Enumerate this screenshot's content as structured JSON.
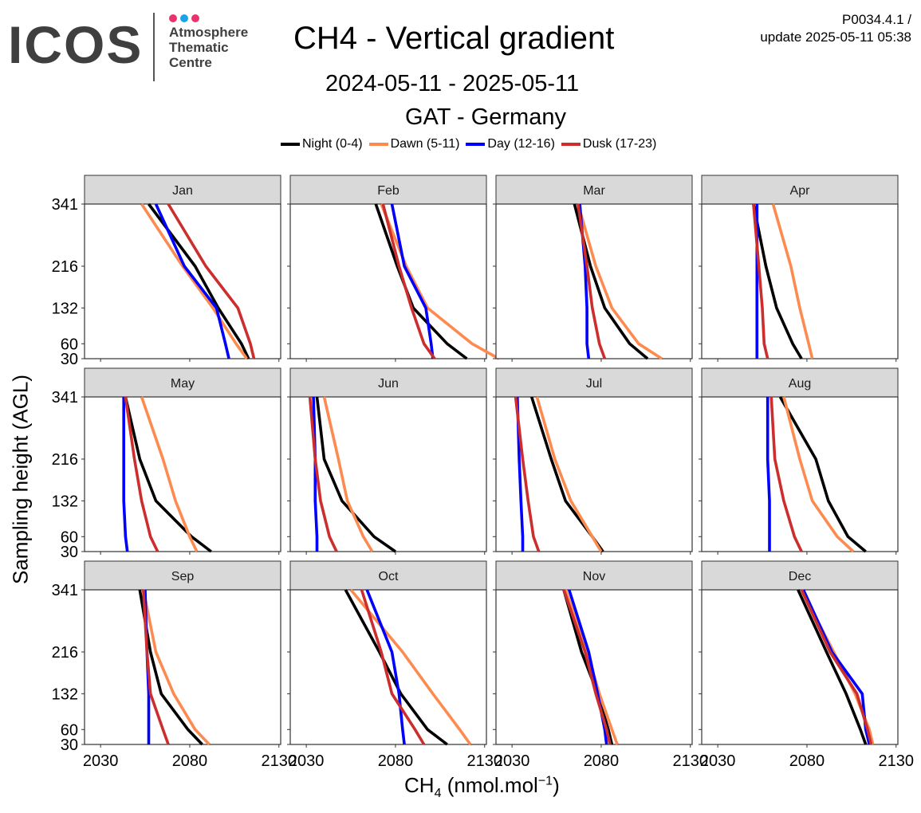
{
  "header": {
    "logo_text": "ICOS",
    "logo_sub": [
      "Atmosphere",
      "Thematic",
      "Centre"
    ],
    "logo_dot_colors": [
      "#e8336d",
      "#1aa3e8",
      "#e8336d"
    ],
    "title": "CH4 - Vertical gradient",
    "subtitle_dates": "2024-05-11 - 2025-05-11",
    "subtitle_station": "GAT - Germany",
    "product_code": "P0034.4.1 /",
    "update_text": "update  2025-05-11 05:38"
  },
  "axis": {
    "ylabel": "Sampling height (AGL)",
    "xlabel_main": "CH",
    "xlabel_sub": "4",
    "xlabel_rest": " (nmol.mol",
    "xlabel_sup": "−1",
    "xlabel_end": ")"
  },
  "chart_data": {
    "type": "line",
    "facets": [
      "Jan",
      "Feb",
      "Mar",
      "Apr",
      "May",
      "Jun",
      "Jul",
      "Aug",
      "Sep",
      "Oct",
      "Nov",
      "Dec"
    ],
    "layout": "3 rows x 4 columns",
    "y_heights": [
      30,
      60,
      132,
      216,
      341
    ],
    "ylim": [
      30,
      341
    ],
    "y_ticks": [
      "30",
      "60",
      "132",
      "216",
      "341"
    ],
    "xlim": [
      2021,
      2131
    ],
    "x_ticks": [
      "2030",
      "2080",
      "2130"
    ],
    "legend_position": "top",
    "series": [
      {
        "name": "Night (0-4)",
        "color": "#000000"
      },
      {
        "name": "Dawn (5-11)",
        "color": "#fd8b50"
      },
      {
        "name": "Day (12-16)",
        "color": "#0000ff"
      },
      {
        "name": "Dusk (17-23)",
        "color": "#cc2e2e"
      }
    ],
    "values": {
      "Jan": {
        "Night (0-4)": [
          2113,
          2109,
          2096,
          2083,
          2057
        ],
        "Dawn (5-11)": [
          2112,
          2106,
          2093,
          2076,
          2053
        ],
        "Day (12-16)": [
          2102,
          2100,
          2095,
          2077,
          2061
        ],
        "Dusk (17-23)": [
          2116,
          2114,
          2107,
          2089,
          2068
        ]
      },
      "Feb": {
        "Night (0-4)": [
          2120,
          2109,
          2090,
          2081,
          2069
        ],
        "Dawn (5-11)": [
          2138,
          2123,
          2098,
          2086,
          2072
        ],
        "Day (12-16)": [
          2101,
          2100,
          2097,
          2085,
          2078
        ],
        "Dusk (17-23)": [
          2102,
          2096,
          2089,
          2082,
          2073
        ]
      },
      "Mar": {
        "Night (0-4)": [
          2106,
          2096,
          2082,
          2074,
          2065
        ],
        "Dawn (5-11)": [
          2114,
          2101,
          2086,
          2077,
          2067
        ],
        "Day (12-16)": [
          2073,
          2072,
          2072,
          2071,
          2068
        ],
        "Dusk (17-23)": [
          2082,
          2079,
          2075,
          2072,
          2067
        ]
      },
      "Apr": {
        "Night (0-4)": [
          2077,
          2072,
          2063,
          2057,
          2050
        ],
        "Dawn (5-11)": [
          2083,
          2081,
          2076,
          2071,
          2061
        ],
        "Day (12-16)": [
          2052,
          2052,
          2052,
          2052,
          2052
        ],
        "Dusk (17-23)": [
          2058,
          2056,
          2055,
          2053,
          2050
        ]
      },
      "May": {
        "Night (0-4)": [
          2092,
          2081,
          2061,
          2052,
          2044
        ],
        "Dawn (5-11)": [
          2084,
          2080,
          2072,
          2065,
          2053
        ],
        "Day (12-16)": [
          2045,
          2044,
          2043,
          2043,
          2043
        ],
        "Dusk (17-23)": [
          2062,
          2058,
          2053,
          2049,
          2044
        ]
      },
      "Jun": {
        "Night (0-4)": [
          2080,
          2068,
          2050,
          2040,
          2036
        ],
        "Dawn (5-11)": [
          2067,
          2062,
          2053,
          2048,
          2040
        ],
        "Day (12-16)": [
          2036,
          2036,
          2035,
          2035,
          2034
        ],
        "Dusk (17-23)": [
          2047,
          2043,
          2038,
          2035,
          2032
        ]
      },
      "Jul": {
        "Night (0-4)": [
          2081,
          2075,
          2060,
          2052,
          2041
        ],
        "Dawn (5-11)": [
          2080,
          2075,
          2063,
          2054,
          2044
        ],
        "Day (12-16)": [
          2036,
          2036,
          2035,
          2034,
          2033
        ],
        "Dusk (17-23)": [
          2045,
          2042,
          2039,
          2036,
          2032
        ]
      },
      "Aug": {
        "Night (0-4)": [
          2113,
          2103,
          2092,
          2085,
          2065
        ],
        "Dawn (5-11)": [
          2106,
          2097,
          2083,
          2076,
          2067
        ],
        "Day (12-16)": [
          2059,
          2059,
          2059,
          2058,
          2058
        ],
        "Dusk (17-23)": [
          2077,
          2073,
          2067,
          2062,
          2060
        ]
      },
      "Sep": {
        "Night (0-4)": [
          2087,
          2079,
          2064,
          2058,
          2052
        ],
        "Dawn (5-11)": [
          2091,
          2083,
          2071,
          2061,
          2054
        ],
        "Day (12-16)": [
          2057,
          2057,
          2057,
          2056,
          2055
        ],
        "Dusk (17-23)": [
          2068,
          2065,
          2058,
          2056,
          2054
        ]
      },
      "Oct": {
        "Night (0-4)": [
          2109,
          2098,
          2083,
          2071,
          2052
        ],
        "Dawn (5-11)": [
          2122,
          2116,
          2101,
          2084,
          2055
        ],
        "Day (12-16)": [
          2085,
          2084,
          2082,
          2078,
          2064
        ],
        "Dusk (17-23)": [
          2096,
          2091,
          2078,
          2072,
          2061
        ]
      },
      "Nov": {
        "Night (0-4)": [
          2086,
          2084,
          2078,
          2069,
          2059
        ],
        "Dawn (5-11)": [
          2089,
          2086,
          2079,
          2072,
          2060
        ],
        "Day (12-16)": [
          2083,
          2082,
          2078,
          2073,
          2062
        ],
        "Dusk (17-23)": [
          2085,
          2083,
          2077,
          2071,
          2059
        ]
      },
      "Dec": {
        "Night (0-4)": [
          2113,
          2110,
          2102,
          2091,
          2075
        ],
        "Dawn (5-11)": [
          2117,
          2115,
          2107,
          2095,
          2077
        ],
        "Day (12-16)": [
          2115,
          2113,
          2111,
          2094,
          2078
        ],
        "Dusk (17-23)": [
          2116,
          2114,
          2108,
          2093,
          2077
        ]
      }
    }
  }
}
